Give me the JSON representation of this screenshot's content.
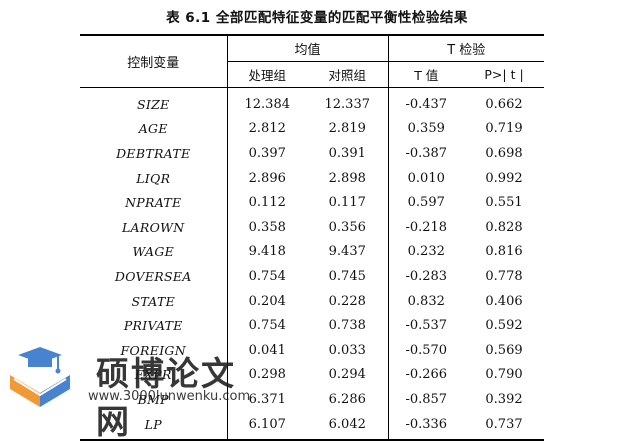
{
  "caption": "表 6.1  全部匹配特征变量的匹配平衡性检验结果",
  "headers": {
    "control_var": "控制变量",
    "mean_group": "均值",
    "ttest_group": "T 检验",
    "treated": "处理组",
    "control": "对照组",
    "t_value": "T 值",
    "p_value": "P>| t |"
  },
  "rows": [
    {
      "var": "SIZE",
      "treated": "12.384",
      "control": "12.337",
      "t": "-0.437",
      "p": "0.662"
    },
    {
      "var": "AGE",
      "treated": "2.812",
      "control": "2.819",
      "t": "0.359",
      "p": "0.719"
    },
    {
      "var": "DEBTRATE",
      "treated": "0.397",
      "control": "0.391",
      "t": "-0.387",
      "p": "0.698"
    },
    {
      "var": "LIQR",
      "treated": "2.896",
      "control": "2.898",
      "t": "0.010",
      "p": "0.992"
    },
    {
      "var": "NPRATE",
      "treated": "0.112",
      "control": "0.117",
      "t": "0.597",
      "p": "0.551"
    },
    {
      "var": "LAROWN",
      "treated": "0.358",
      "control": "0.356",
      "t": "-0.218",
      "p": "0.828"
    },
    {
      "var": "WAGE",
      "treated": "9.418",
      "control": "9.437",
      "t": "0.232",
      "p": "0.816"
    },
    {
      "var": "DOVERSEA",
      "treated": "0.754",
      "control": "0.745",
      "t": "-0.283",
      "p": "0.778"
    },
    {
      "var": "STATE",
      "treated": "0.204",
      "control": "0.228",
      "t": "0.832",
      "p": "0.406"
    },
    {
      "var": "PRIVATE",
      "treated": "0.754",
      "control": "0.738",
      "t": "-0.537",
      "p": "0.592"
    },
    {
      "var": "FOREIGN",
      "treated": "0.041",
      "control": "0.033",
      "t": "-0.570",
      "p": "0.569"
    },
    {
      "var": "EXPR",
      "treated": "0.298",
      "control": "0.294",
      "t": "-0.266",
      "p": "0.790"
    },
    {
      "var": "BMP",
      "treated": "6.371",
      "control": "6.286",
      "t": "-0.857",
      "p": "0.392"
    },
    {
      "var": "LP",
      "treated": "6.107",
      "control": "6.042",
      "t": "-0.336",
      "p": "0.737"
    }
  ],
  "watermark": {
    "title": "硕博论文网",
    "url": "www.3000lunwenku.com",
    "colors": {
      "cap": "#2f72c9",
      "book_orange": "#f08a1c",
      "book_blue": "#2f72c9"
    }
  }
}
